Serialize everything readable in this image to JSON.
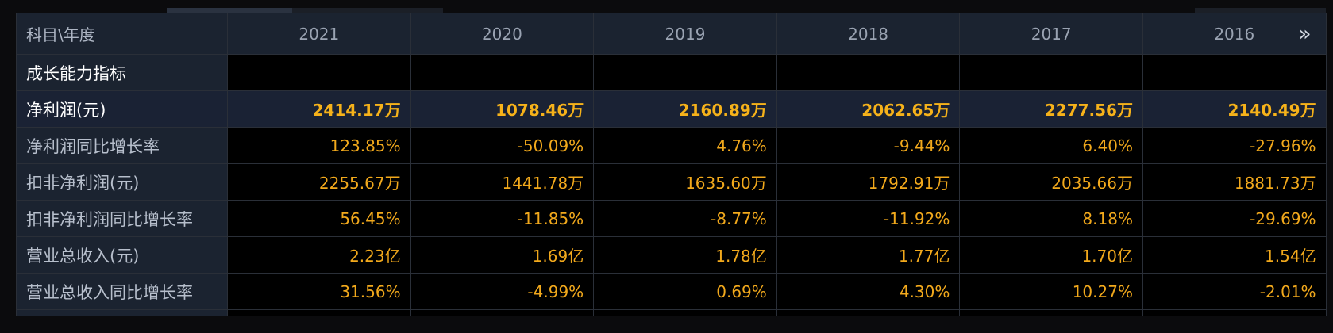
{
  "header": {
    "label": "科目\\年度",
    "years": [
      "2021",
      "2020",
      "2019",
      "2018",
      "2017",
      "2016"
    ],
    "more_icon": "double-chevron-right-icon",
    "more_glyph": "»"
  },
  "section": {
    "label": "成长能力指标"
  },
  "rows": [
    {
      "label": "净利润(元)",
      "values": [
        "2414.17万",
        "1078.46万",
        "2160.89万",
        "2062.65万",
        "2277.56万",
        "2140.49万"
      ]
    },
    {
      "label": "净利润同比增长率",
      "values": [
        "123.85%",
        "-50.09%",
        "4.76%",
        "-9.44%",
        "6.40%",
        "-27.96%"
      ]
    },
    {
      "label": "扣非净利润(元)",
      "values": [
        "2255.67万",
        "1441.78万",
        "1635.60万",
        "1792.91万",
        "2035.66万",
        "1881.73万"
      ]
    },
    {
      "label": "扣非净利润同比增长率",
      "values": [
        "56.45%",
        "-11.85%",
        "-8.77%",
        "-11.92%",
        "8.18%",
        "-29.69%"
      ]
    },
    {
      "label": "营业总收入(元)",
      "values": [
        "2.23亿",
        "1.69亿",
        "1.78亿",
        "1.77亿",
        "1.70亿",
        "1.54亿"
      ]
    },
    {
      "label": "营业总收入同比增长率",
      "values": [
        "31.56%",
        "-4.99%",
        "0.69%",
        "4.30%",
        "10.27%",
        "-2.01%"
      ]
    }
  ],
  "colors": {
    "header_bg": "#1b2330",
    "value": "#f2a91c",
    "highlight_row_bg": "#1a2234"
  }
}
